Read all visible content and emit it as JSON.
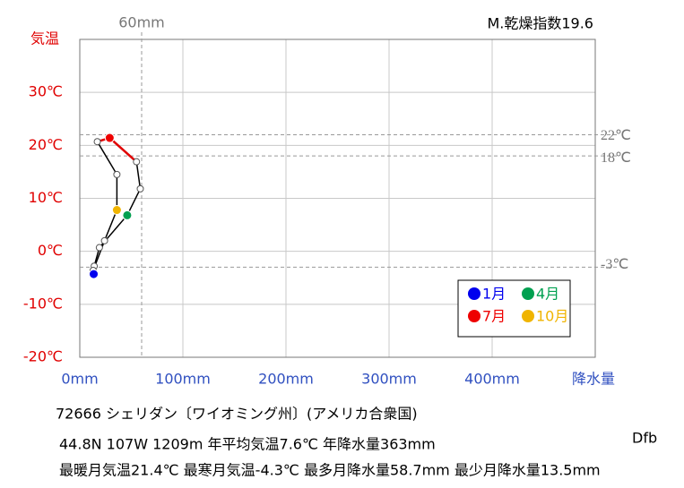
{
  "chart_data": {
    "type": "climograph",
    "y_label": "気温",
    "x_label": "降水量",
    "index_text": "M.乾燥指数19.6",
    "station": "72666  シェリダン〔ワイオミング州〕(アメリカ合衆国)",
    "info_lines": [
      "44.8N  107W 1209m  年平均気温7.6℃ 年降水量363mm",
      "最暖月気温21.4℃ 最寒月気温-4.3℃ 最多月降水量58.7mm 最少月降水量13.5mm"
    ],
    "climate_class": "Dfb",
    "categories": [
      "1月",
      null,
      null,
      "4月",
      null,
      null,
      "7月",
      null,
      null,
      "10月",
      null,
      null
    ],
    "x": [
      13.5,
      14,
      19,
      46,
      58.7,
      55,
      29,
      17,
      36,
      36,
      24,
      13
    ],
    "values": [
      -4.3,
      -2.8,
      0.7,
      6.8,
      11.8,
      16.9,
      21.4,
      20.7,
      14.5,
      7.8,
      2.0,
      -3.6
    ],
    "line_color": "#000000",
    "warm_line_color": "#e00000",
    "highlights": [
      {
        "label": "1月",
        "color": "#0000ee"
      },
      {
        "label": "4月",
        "color": "#00a050"
      },
      {
        "label": "7月",
        "color": "#ee0000"
      },
      {
        "label": "10月",
        "color": "#f0b400"
      }
    ],
    "xlim": [
      0,
      500
    ],
    "ylim": [
      -20,
      40
    ],
    "xticks": [
      {
        "value": 0,
        "label": "0mm"
      },
      {
        "value": 100,
        "label": "100mm"
      },
      {
        "value": 200,
        "label": "200mm"
      },
      {
        "value": 300,
        "label": "300mm"
      },
      {
        "value": 400,
        "label": "400mm"
      }
    ],
    "yticks": [
      {
        "value": -20,
        "label": "-20℃"
      },
      {
        "value": -10,
        "label": "-10℃"
      },
      {
        "value": 0,
        "label": "0℃"
      },
      {
        "value": 10,
        "label": "10℃"
      },
      {
        "value": 20,
        "label": "20℃"
      },
      {
        "value": 30,
        "label": "30℃"
      }
    ],
    "y_reference_lines": [
      {
        "value": 22,
        "label": "22℃"
      },
      {
        "value": 18,
        "label": "18℃"
      },
      {
        "value": -3,
        "label": "-3℃"
      }
    ],
    "x_reference_line": {
      "value": 60,
      "label": "60mm"
    },
    "grid": true
  }
}
